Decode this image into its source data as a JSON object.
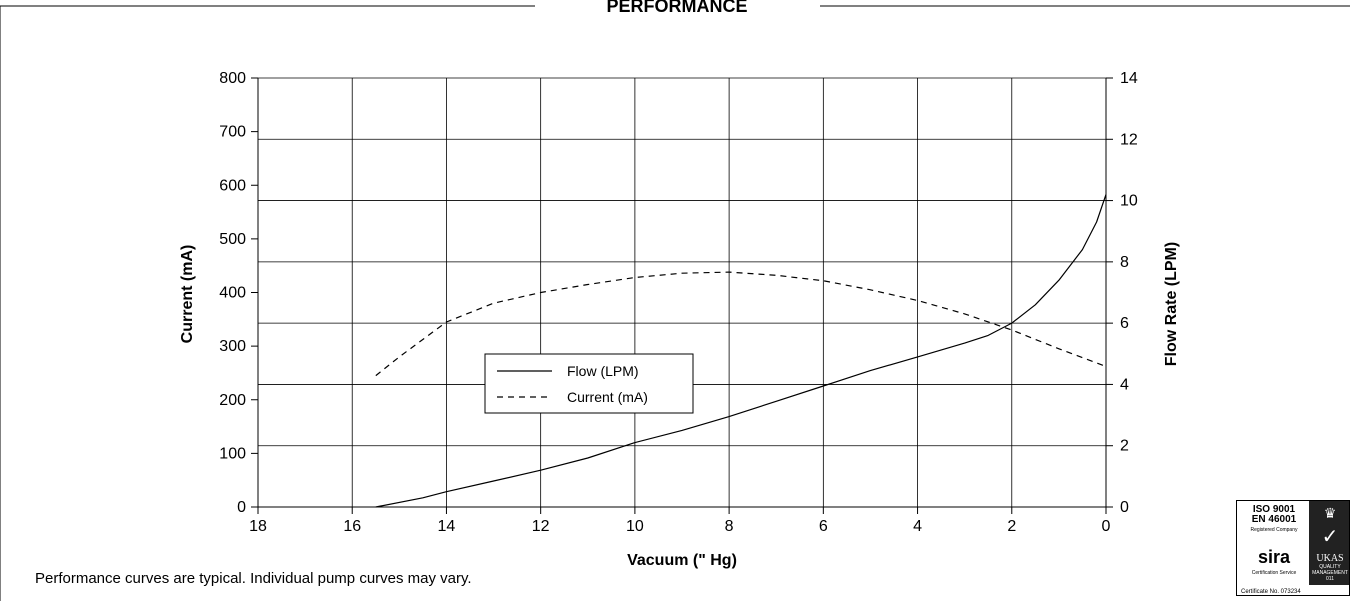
{
  "section_title": "PERFORMANCE",
  "footnote": "Performance curves are typical. Individual pump curves may vary.",
  "certification": {
    "iso_line1": "ISO 9001",
    "iso_line2": "EN 46001",
    "registered": "Registered Company",
    "sira": "sira",
    "sira_sub": "Certification Service",
    "ukas": "UKAS",
    "ukas_sub": "QUALITY MANAGEMENT",
    "ukas_num": "011",
    "cert_number": "Certificate No. 073234"
  },
  "colors": {
    "line": "#000000",
    "grid": "#000000",
    "background": "#ffffff"
  },
  "chart_data": {
    "type": "line",
    "title": "",
    "xlabel": "Vacuum (\" Hg)",
    "ylabel": "Current (mA)",
    "y2label": "Flow Rate (LPM)",
    "xlim": [
      18,
      0
    ],
    "ylim": [
      0,
      800
    ],
    "y2lim": [
      0,
      14
    ],
    "x_ticks": [
      18,
      16,
      14,
      12,
      10,
      8,
      6,
      4,
      2,
      0
    ],
    "y_ticks": [
      0,
      100,
      200,
      300,
      400,
      500,
      600,
      700,
      800
    ],
    "y2_ticks": [
      0,
      2,
      4,
      6,
      8,
      10,
      12,
      14
    ],
    "grid": true,
    "legend_position": "center-left",
    "series": [
      {
        "name": "Flow (LPM)",
        "axis": "right",
        "style": "solid",
        "x": [
          15.5,
          14.5,
          14,
          13,
          12,
          11,
          10,
          9,
          8,
          7,
          6,
          5,
          4,
          3,
          2.5,
          2,
          1.5,
          1,
          0.5,
          0.2,
          0
        ],
        "y": [
          0,
          0.3,
          0.5,
          0.85,
          1.2,
          1.6,
          2.1,
          2.5,
          2.95,
          3.45,
          3.95,
          4.45,
          4.9,
          5.35,
          5.6,
          6.0,
          6.6,
          7.4,
          8.4,
          9.3,
          10.2
        ]
      },
      {
        "name": "Current (mA)",
        "axis": "left",
        "style": "dashed",
        "x": [
          15.5,
          15,
          14,
          13,
          12,
          11,
          10,
          9,
          8,
          7,
          6,
          5,
          4,
          3,
          2,
          1,
          0
        ],
        "y": [
          245,
          280,
          345,
          380,
          400,
          415,
          428,
          436,
          438,
          432,
          422,
          405,
          385,
          360,
          330,
          295,
          262
        ]
      }
    ]
  }
}
